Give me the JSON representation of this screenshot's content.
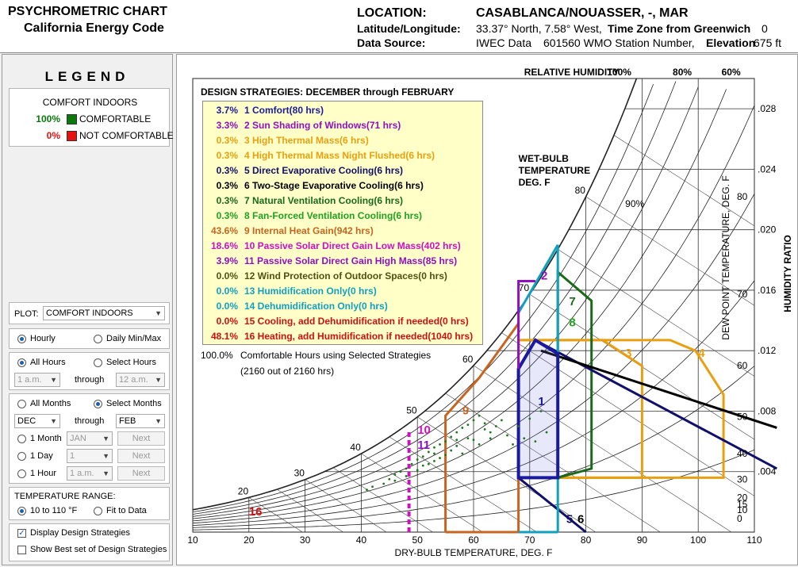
{
  "header": {
    "title": "PSYCHROMETRIC CHART",
    "subtitle": "California Energy Code",
    "location_label": "LOCATION:",
    "location_value": "CASABLANCA/NOUASSER, -, MAR",
    "latlon_label": "Latitude/Longitude:",
    "latlon_value": "33.37° North, 7.58° West,",
    "tz_label": "Time Zone from Greenwich",
    "tz_value": "0",
    "source_label": "Data Source:",
    "source_value": "IWEC Data",
    "station_value": "601560 WMO Station Number,",
    "elev_label": "Elevation",
    "elev_value": "675 ft"
  },
  "legend": {
    "title": "LEGEND",
    "subtitle": "COMFORT INDOORS",
    "items": [
      {
        "pct": "100%",
        "label": "COMFORTABLE",
        "color": "#0a7a0a"
      },
      {
        "pct": "0%",
        "label": "NOT COMFORTABLE",
        "color": "#e81010"
      }
    ]
  },
  "controls": {
    "plot_label": "PLOT:",
    "plot_value": "COMFORT INDOORS",
    "hourly": "Hourly",
    "daily": "Daily Min/Max",
    "all_hours": "All Hours",
    "select_hours": "Select Hours",
    "hour_from": "1 a.m.",
    "through": "through",
    "hour_to": "12 a.m.",
    "all_months": "All Months",
    "select_months": "Select Months",
    "month_from": "DEC",
    "month_to": "FEB",
    "one_month": "1 Month",
    "one_month_value": "JAN",
    "one_day": "1 Day",
    "one_day_value": "1",
    "one_hour": "1 Hour",
    "one_hour_value": "1 a.m.",
    "next": "Next",
    "temp_range_label": "TEMPERATURE RANGE:",
    "range_a": "10 to 110 °F",
    "range_b": "Fit to Data",
    "display_strategies": "Display Design Strategies",
    "show_best": "Show Best set of Design Strategies"
  },
  "chart_data": {
    "type": "scatter",
    "title": "DESIGN STRATEGIES:  DECEMBER through FEBRUARY",
    "xlabel": "DRY-BULB TEMPERATURE, DEG. F",
    "ylabel": "HUMIDITY RATIO",
    "y2label": "DEW POINT TEMPERATURE, DEG. F",
    "wetbulb_label": [
      "WET-BULB",
      "TEMPERATURE",
      "DEG. F"
    ],
    "rh_header": "RELATIVE HUMIDITY",
    "rh_labels": [
      "100%",
      "80%",
      "60%"
    ],
    "rh_inner_label": "90%",
    "xlim": [
      10,
      110
    ],
    "ylim": [
      0,
      0.03
    ],
    "x_ticks": [
      "10",
      "20",
      "30",
      "40",
      "50",
      "60",
      "70",
      "80",
      "90",
      "100",
      "110"
    ],
    "hr_ticks": [
      ".028",
      ".024",
      ".020",
      ".016",
      ".012",
      ".008",
      ".004"
    ],
    "dp_ticks": [
      "80",
      "70",
      "60",
      "50",
      "40",
      "30",
      "20",
      "15",
      "10",
      "0"
    ],
    "wb_ticks": [
      "20",
      "30",
      "40",
      "50",
      "60",
      "70",
      "80"
    ],
    "strategies": [
      {
        "pct": "3.7%",
        "num": "1",
        "label": "Comfort(80 hrs)",
        "color": "#1a1aa0"
      },
      {
        "pct": "3.3%",
        "num": "2",
        "label": "Sun Shading of Windows(71 hrs)",
        "color": "#9010c0"
      },
      {
        "pct": "0.3%",
        "num": "3",
        "label": "High Thermal Mass(6 hrs)",
        "color": "#e8a010"
      },
      {
        "pct": "0.3%",
        "num": "4",
        "label": "High Thermal Mass Night Flushed(6 hrs)",
        "color": "#e8a010"
      },
      {
        "pct": "0.3%",
        "num": "5",
        "label": "Direct Evaporative Cooling(6 hrs)",
        "color": "#10106a"
      },
      {
        "pct": "0.3%",
        "num": "6",
        "label": "Two-Stage Evaporative Cooling(6 hrs)",
        "color": "#000000"
      },
      {
        "pct": "0.3%",
        "num": "7",
        "label": "Natural Ventilation Cooling(6 hrs)",
        "color": "#1a6a1a"
      },
      {
        "pct": "0.3%",
        "num": "8",
        "label": "Fan-Forced Ventilation Cooling(6 hrs)",
        "color": "#20a020"
      },
      {
        "pct": "43.6%",
        "num": "9",
        "label": "Internal Heat Gain(942 hrs)",
        "color": "#c86420"
      },
      {
        "pct": "18.6%",
        "num": "10",
        "label": "Passive Solar Direct Gain Low Mass(402 hrs)",
        "color": "#d010c0"
      },
      {
        "pct": "3.9%",
        "num": "11",
        "label": "Passive Solar Direct Gain High Mass(85 hrs)",
        "color": "#9010c0"
      },
      {
        "pct": "0.0%",
        "num": "12",
        "label": "Wind Protection of Outdoor Spaces(0 hrs)",
        "color": "#505010"
      },
      {
        "pct": "0.0%",
        "num": "13",
        "label": "Humidification Only(0 hrs)",
        "color": "#10a0c0"
      },
      {
        "pct": "0.0%",
        "num": "14",
        "label": "Dehumidification Only(0 hrs)",
        "color": "#10a0c0"
      },
      {
        "pct": "0.0%",
        "num": "15",
        "label": "Cooling, add Dehumidification if needed(0 hrs)",
        "color": "#d01010"
      },
      {
        "pct": "48.1%",
        "num": "16",
        "label": "Heating, add Humidification if needed(1040 hrs)",
        "color": "#d01010"
      }
    ],
    "summary_pct": "100.0%",
    "summary_text": "Comfortable Hours using Selected Strategies",
    "summary_sub": "(2160 out of 2160 hrs)",
    "zone_labels": [
      "1",
      "2",
      "3",
      "4",
      "5",
      "6",
      "7",
      "8",
      "9",
      "10",
      "11",
      "16"
    ],
    "series": [
      {
        "color": "#1a7a1a",
        "points": [
          [
            45,
            0.0035
          ],
          [
            46,
            0.0038
          ],
          [
            47,
            0.004
          ],
          [
            48,
            0.0042
          ],
          [
            49,
            0.0045
          ],
          [
            50,
            0.0048
          ],
          [
            51,
            0.005
          ],
          [
            52,
            0.0053
          ],
          [
            53,
            0.0056
          ],
          [
            54,
            0.0058
          ],
          [
            55,
            0.006
          ],
          [
            56,
            0.0063
          ],
          [
            57,
            0.0066
          ],
          [
            58,
            0.0069
          ],
          [
            59,
            0.0071
          ],
          [
            60,
            0.0074
          ],
          [
            61,
            0.0077
          ],
          [
            62,
            0.0072
          ],
          [
            55,
            0.0051
          ],
          [
            53,
            0.0047
          ],
          [
            51,
            0.0044
          ],
          [
            57,
            0.0057
          ],
          [
            59,
            0.0062
          ],
          [
            63,
            0.0066
          ],
          [
            64,
            0.007
          ],
          [
            58,
            0.0052
          ],
          [
            60,
            0.0061
          ],
          [
            52,
            0.0045
          ],
          [
            50,
            0.0041
          ],
          [
            48,
            0.0037
          ],
          [
            46,
            0.0034
          ],
          [
            44,
            0.0032
          ],
          [
            42,
            0.003
          ],
          [
            41,
            0.0028
          ],
          [
            54,
            0.0049
          ],
          [
            56,
            0.0054
          ],
          [
            62,
            0.0068
          ],
          [
            65,
            0.0074
          ],
          [
            66,
            0.0064
          ],
          [
            68,
            0.007
          ],
          [
            70,
            0.0075
          ],
          [
            72,
            0.008
          ],
          [
            71,
            0.006
          ],
          [
            67,
            0.0058
          ],
          [
            69,
            0.0062
          ],
          [
            73,
            0.0066
          ],
          [
            61,
            0.0058
          ],
          [
            63,
            0.0062
          ],
          [
            53,
            0.0052
          ],
          [
            57,
            0.0061
          ]
        ]
      }
    ]
  }
}
